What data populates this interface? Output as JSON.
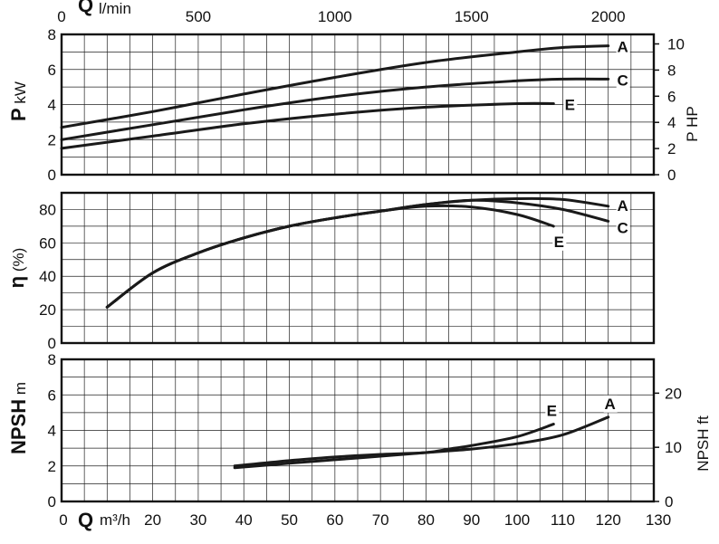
{
  "chart_data": [
    {
      "type": "line",
      "panel": "power",
      "ylabel": "P",
      "ylabel_unit": "kW",
      "y2label": "P HP",
      "xlim": [
        0,
        130
      ],
      "ylim": [
        0,
        8
      ],
      "yticks": [
        "0",
        "2",
        "4",
        "6",
        "8"
      ],
      "y2ticks": [
        "0",
        "2",
        "4",
        "6",
        "8",
        "10"
      ],
      "top_axis": {
        "label": "Q",
        "unit": "l/min",
        "ticks": [
          "0",
          "500",
          "1000",
          "1500",
          "2000"
        ]
      },
      "series": [
        {
          "name": "A",
          "x": [
            0,
            20,
            40,
            60,
            80,
            100,
            110,
            120
          ],
          "values": [
            2.7,
            3.6,
            4.6,
            5.55,
            6.4,
            7.0,
            7.25,
            7.35
          ]
        },
        {
          "name": "C",
          "x": [
            0,
            20,
            40,
            60,
            80,
            100,
            110,
            120
          ],
          "values": [
            2.0,
            2.85,
            3.7,
            4.45,
            5.0,
            5.35,
            5.45,
            5.45
          ]
        },
        {
          "name": "E",
          "x": [
            0,
            20,
            40,
            60,
            80,
            100,
            108
          ],
          "values": [
            1.5,
            2.2,
            2.9,
            3.45,
            3.85,
            4.05,
            4.05
          ]
        }
      ]
    },
    {
      "type": "line",
      "panel": "efficiency",
      "ylabel": "η",
      "ylabel_unit": "(%)",
      "xlim": [
        0,
        130
      ],
      "ylim": [
        0,
        90
      ],
      "yticks": [
        "0",
        "20",
        "40",
        "60",
        "80"
      ],
      "series": [
        {
          "name": "A",
          "x": [
            10,
            20,
            30,
            40,
            50,
            60,
            70,
            80,
            90,
            100,
            110,
            120
          ],
          "values": [
            21.5,
            42,
            54,
            63,
            70,
            75,
            79,
            83,
            85.5,
            86.5,
            86,
            82
          ]
        },
        {
          "name": "C",
          "x": [
            10,
            20,
            30,
            40,
            50,
            60,
            70,
            80,
            90,
            100,
            110,
            120
          ],
          "values": [
            21.5,
            42,
            54,
            63,
            70,
            75,
            79,
            83,
            85.5,
            84,
            80,
            73
          ]
        },
        {
          "name": "E",
          "x": [
            10,
            20,
            30,
            40,
            50,
            60,
            70,
            80,
            90,
            100,
            108
          ],
          "values": [
            21.5,
            42,
            54,
            63,
            70,
            75,
            79,
            82,
            81.5,
            77,
            70
          ]
        }
      ]
    },
    {
      "type": "line",
      "panel": "npsh",
      "ylabel": "NPSH",
      "ylabel_unit": "m",
      "y2label": "NPSH ft",
      "xlabel": "Q",
      "xlabel_unit": "m³/h",
      "xlim": [
        0,
        130
      ],
      "ylim": [
        0,
        8
      ],
      "xticks": [
        "0",
        "20",
        "30",
        "40",
        "50",
        "60",
        "70",
        "80",
        "90",
        "100",
        "110",
        "120",
        "130"
      ],
      "yticks": [
        "0",
        "2",
        "4",
        "6",
        "8"
      ],
      "y2ticks": [
        "0",
        "10",
        "20"
      ],
      "series": [
        {
          "name": "A",
          "x": [
            38,
            50,
            60,
            70,
            80,
            90,
            100,
            110,
            120
          ],
          "values": [
            1.9,
            2.15,
            2.35,
            2.55,
            2.75,
            2.95,
            3.25,
            3.75,
            4.75
          ]
        },
        {
          "name": "E",
          "x": [
            38,
            50,
            60,
            70,
            80,
            85,
            90,
            100,
            108
          ],
          "values": [
            2.0,
            2.3,
            2.5,
            2.65,
            2.75,
            2.95,
            3.15,
            3.65,
            4.35
          ]
        }
      ]
    }
  ]
}
